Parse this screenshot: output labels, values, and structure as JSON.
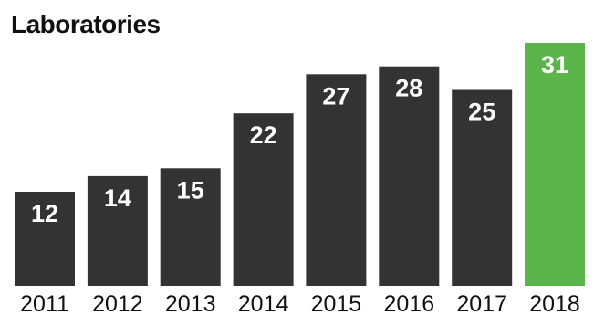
{
  "chart_data": {
    "type": "bar",
    "title": "Laboratories",
    "categories": [
      "2011",
      "2012",
      "2013",
      "2014",
      "2015",
      "2016",
      "2017",
      "2018"
    ],
    "values": [
      12,
      14,
      15,
      22,
      27,
      28,
      25,
      31
    ],
    "xlabel": "",
    "ylabel": "",
    "ylim": [
      0,
      31
    ],
    "grid": false,
    "legend": "none",
    "colors": {
      "default": "#333333",
      "highlight": "#5cb54a",
      "label": "#ffffff"
    },
    "highlight_category": "2018"
  }
}
